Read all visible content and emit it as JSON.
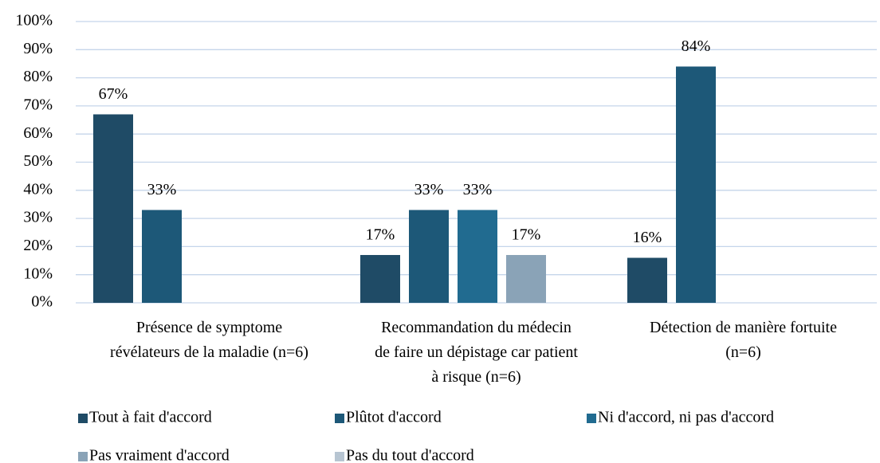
{
  "chart_data": {
    "type": "bar",
    "categories": [
      "Présence de symptome\nrévélateurs de la maladie (n=6)",
      "Recommandation du médecin\nde faire un dépistage car patient\nà risque (n=6)",
      "Détection de manière fortuite\n(n=6)"
    ],
    "series": [
      {
        "name": "Tout à fait d'accord",
        "color": "#1f4b66",
        "values": [
          67,
          17,
          16
        ],
        "value_labels": [
          "67%",
          "17%",
          "16%"
        ]
      },
      {
        "name": "Plûtot d'accord",
        "color": "#1d5878",
        "values": [
          33,
          33,
          84
        ],
        "value_labels": [
          "33%",
          "33%",
          "84%"
        ]
      },
      {
        "name": "Ni d'accord, ni pas d'accord",
        "color": "#216b90",
        "values": [
          null,
          33,
          null
        ],
        "value_labels": [
          null,
          "33%",
          null
        ]
      },
      {
        "name": "Pas vraiment d'accord",
        "color": "#8aa3b7",
        "values": [
          null,
          17,
          null
        ],
        "value_labels": [
          null,
          "17%",
          null
        ]
      },
      {
        "name": "Pas du tout d'accord",
        "color": "#b7c5d2",
        "values": [
          null,
          null,
          null
        ],
        "value_labels": [
          null,
          null,
          null
        ]
      }
    ],
    "ylim": [
      0,
      100
    ],
    "yticks": [
      {
        "value": 0,
        "label": "0%"
      },
      {
        "value": 10,
        "label": "10%"
      },
      {
        "value": 20,
        "label": "20%"
      },
      {
        "value": 30,
        "label": "30%"
      },
      {
        "value": 40,
        "label": "40%"
      },
      {
        "value": 50,
        "label": "50%"
      },
      {
        "value": 60,
        "label": "60%"
      },
      {
        "value": 70,
        "label": "70%"
      },
      {
        "value": 80,
        "label": "80%"
      },
      {
        "value": 90,
        "label": "90%"
      },
      {
        "value": 100,
        "label": "100%"
      }
    ],
    "grid": true,
    "legend": "bottom"
  }
}
